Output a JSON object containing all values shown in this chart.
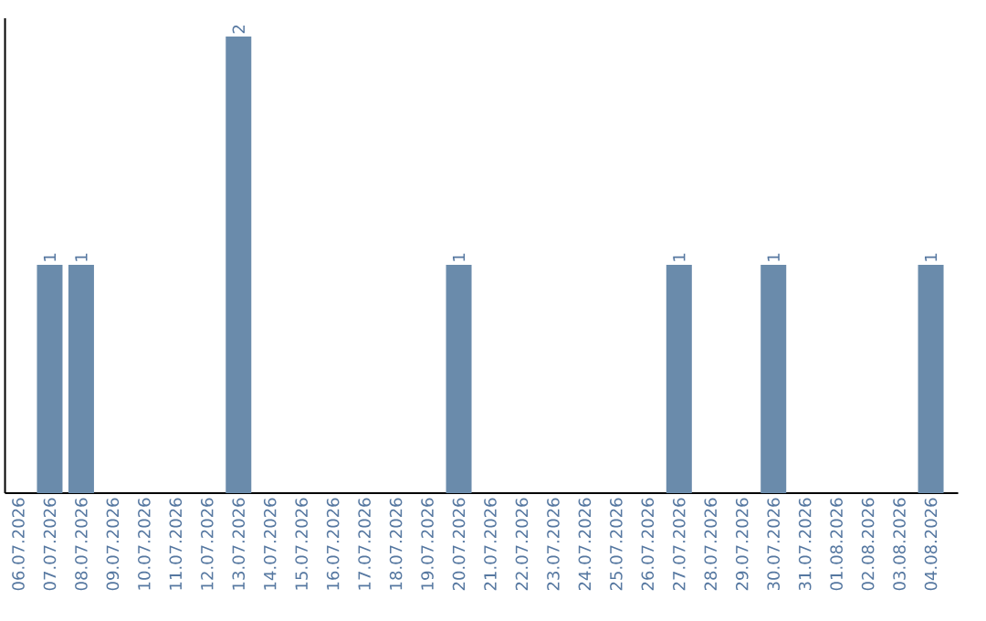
{
  "chart_data": {
    "type": "bar",
    "categories": [
      "06.07.2026",
      "07.07.2026",
      "08.07.2026",
      "09.07.2026",
      "10.07.2026",
      "11.07.2026",
      "12.07.2026",
      "13.07.2026",
      "14.07.2026",
      "15.07.2026",
      "16.07.2026",
      "17.07.2026",
      "18.07.2026",
      "19.07.2026",
      "20.07.2026",
      "21.07.2026",
      "22.07.2026",
      "23.07.2026",
      "24.07.2026",
      "25.07.2026",
      "26.07.2026",
      "27.07.2026",
      "28.07.2026",
      "29.07.2026",
      "30.07.2026",
      "31.07.2026",
      "01.08.2026",
      "02.08.2026",
      "03.08.2026",
      "04.08.2026"
    ],
    "values": [
      0,
      1,
      1,
      0,
      0,
      0,
      0,
      2,
      0,
      0,
      0,
      0,
      0,
      0,
      1,
      0,
      0,
      0,
      0,
      0,
      0,
      1,
      0,
      0,
      1,
      0,
      0,
      0,
      0,
      1
    ],
    "value_labels": [
      null,
      "1",
      "1",
      null,
      null,
      null,
      null,
      "2",
      null,
      null,
      null,
      null,
      null,
      null,
      "1",
      null,
      null,
      null,
      null,
      null,
      null,
      "1",
      null,
      null,
      "1",
      null,
      null,
      null,
      null,
      "1"
    ],
    "color": "#6a8bab"
  }
}
